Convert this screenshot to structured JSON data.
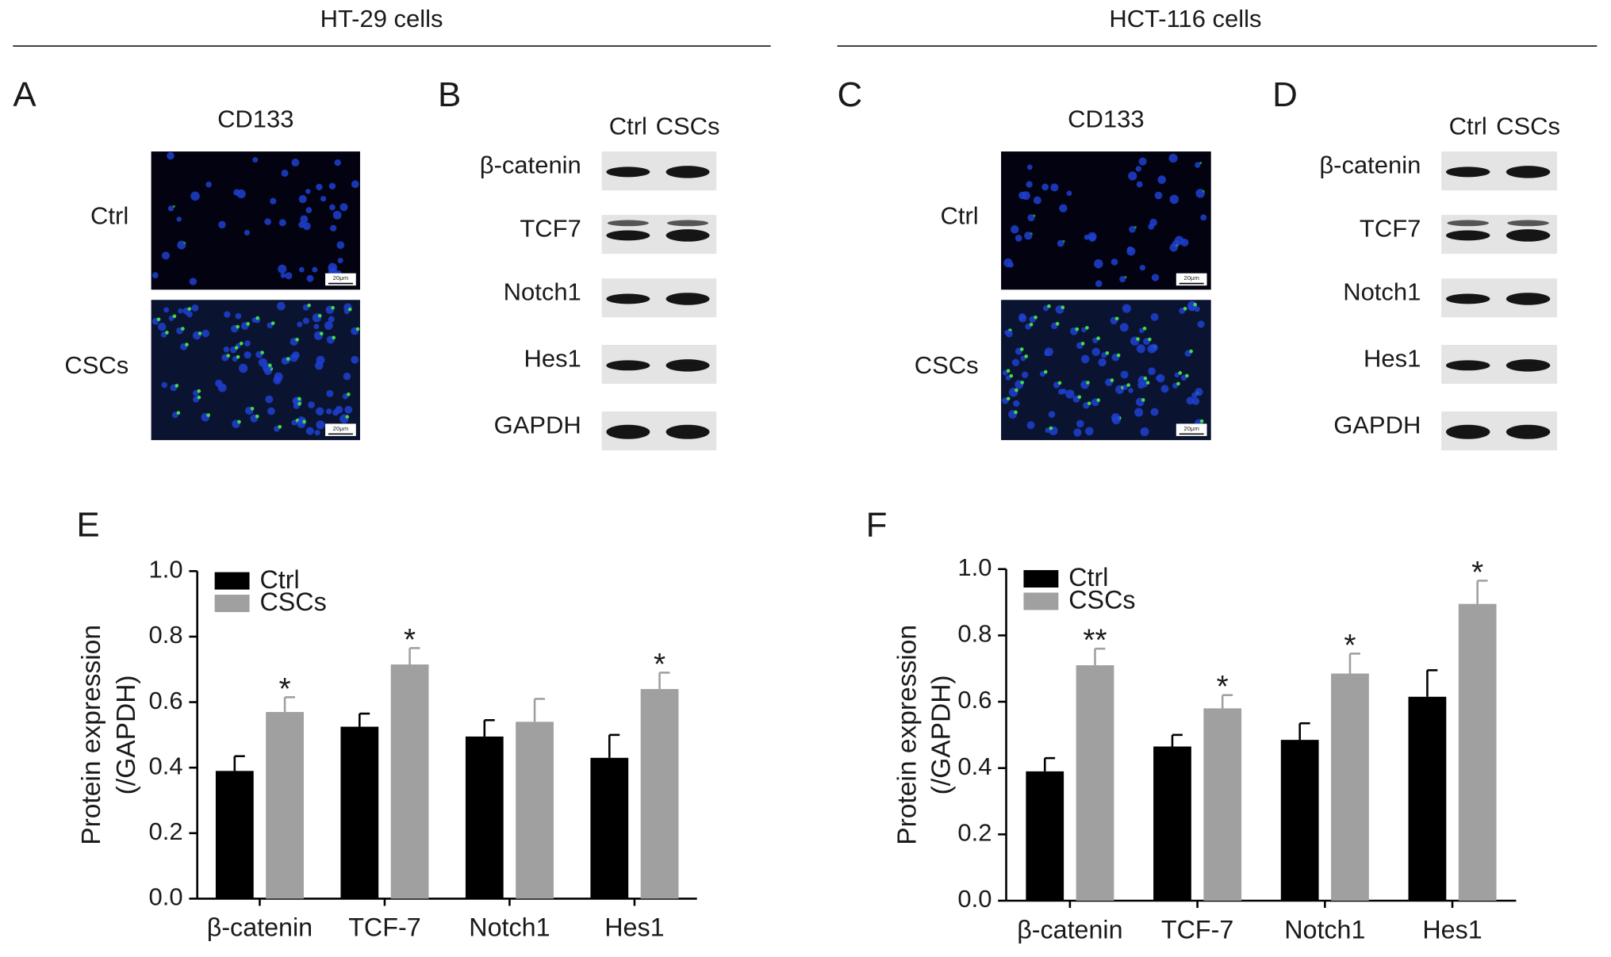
{
  "headers": [
    "HT-29 cells",
    "HCT-116 cells"
  ],
  "scale_bar": "20μm",
  "panels": [
    {
      "letter": "A",
      "title": "CD133",
      "rows": [
        "Ctrl",
        "CSCs"
      ]
    },
    {
      "letter": "B",
      "columns": [
        "Ctrl",
        "CSCs"
      ],
      "rows": [
        "β-catenin",
        "TCF7",
        "Notch1",
        "Hes1",
        "GAPDH"
      ]
    },
    {
      "letter": "C",
      "title": "CD133",
      "rows": [
        "Ctrl",
        "CSCs"
      ]
    },
    {
      "letter": "D",
      "columns": [
        "Ctrl",
        "CSCs"
      ],
      "rows": [
        "β-catenin",
        "TCF7",
        "Notch1",
        "Hes1",
        "GAPDH"
      ]
    }
  ],
  "chart_data": [
    {
      "type": "bar",
      "panel": "E",
      "ylabel": [
        "Protein expression",
        "(/GAPDH)"
      ],
      "categories": [
        "β-catenin",
        "TCF-7",
        "Notch1",
        "Hes1"
      ],
      "series": [
        {
          "name": "Ctrl",
          "color": "#000000",
          "values": [
            0.39,
            0.525,
            0.495,
            0.43
          ],
          "errors": [
            0.045,
            0.04,
            0.05,
            0.07
          ],
          "annotations": [
            null,
            null,
            null,
            null
          ]
        },
        {
          "name": "CSCs",
          "color": "#a0a0a0",
          "values": [
            0.57,
            0.715,
            0.54,
            0.64
          ],
          "errors": [
            0.045,
            0.05,
            0.07,
            0.05
          ],
          "annotations": [
            "*",
            "*",
            null,
            "*"
          ]
        }
      ],
      "ylim": [
        0,
        1
      ],
      "yticks": [
        {
          "value": 0,
          "label": "0.0"
        },
        0.2,
        0.4,
        0.6,
        0.8,
        {
          "value": 1,
          "label": "1.0"
        }
      ],
      "legend": "top-left"
    },
    {
      "type": "bar",
      "panel": "F",
      "ylabel": [
        "Protein expression",
        "(/GAPDH)"
      ],
      "categories": [
        "β-catenin",
        "TCF-7",
        "Notch1",
        "Hes1"
      ],
      "series": [
        {
          "name": "Ctrl",
          "color": "#000000",
          "values": [
            0.39,
            0.465,
            0.485,
            0.615
          ],
          "errors": [
            0.04,
            0.035,
            0.05,
            0.08
          ],
          "annotations": [
            null,
            null,
            null,
            null
          ]
        },
        {
          "name": "CSCs",
          "color": "#a0a0a0",
          "values": [
            0.71,
            0.58,
            0.685,
            0.895
          ],
          "errors": [
            0.05,
            0.04,
            0.06,
            0.07
          ],
          "annotations": [
            "**",
            "*",
            "*",
            "*"
          ]
        }
      ],
      "ylim": [
        0,
        1
      ],
      "yticks": [
        {
          "value": 0,
          "label": "0.0"
        },
        0.2,
        0.4,
        0.6,
        0.8,
        {
          "value": 1,
          "label": "1.0"
        }
      ],
      "legend": "top-left"
    }
  ]
}
